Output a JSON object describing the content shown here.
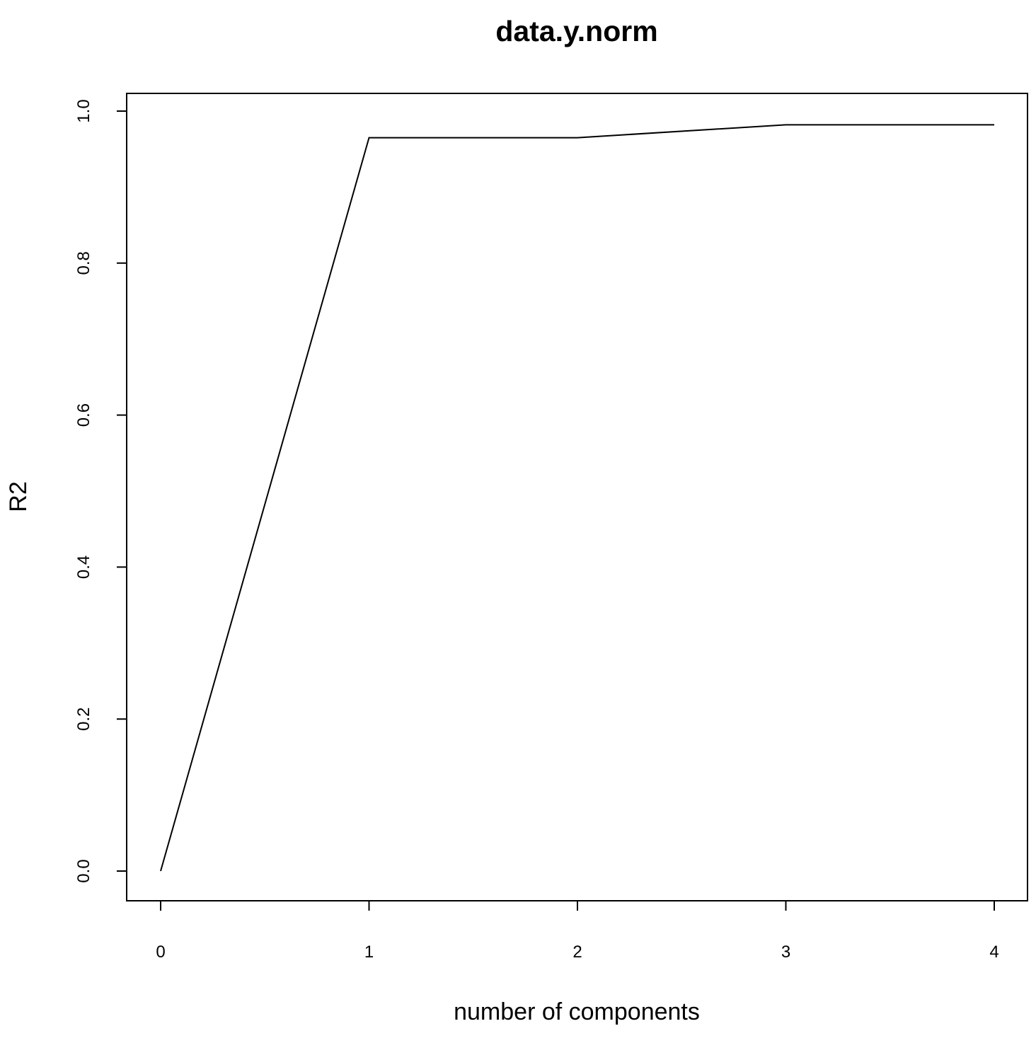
{
  "chart_data": {
    "type": "line",
    "title": "data.y.norm",
    "xlabel": "number of components",
    "ylabel": "R2",
    "x": [
      0,
      1,
      2,
      3,
      4
    ],
    "series": [
      {
        "values": [
          0.0,
          0.965,
          0.965,
          0.982,
          0.982
        ]
      }
    ],
    "xlim": [
      0,
      4
    ],
    "ylim": [
      0,
      1
    ],
    "xticks": [
      "0",
      "1",
      "2",
      "3",
      "4"
    ],
    "yticks": [
      "0.0",
      "0.2",
      "0.4",
      "0.6",
      "0.8",
      "1.0"
    ],
    "grid": false,
    "line_color": "#000000"
  }
}
